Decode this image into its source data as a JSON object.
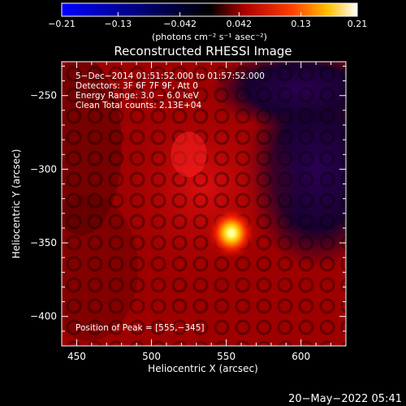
{
  "colorbar": {
    "ticks": [
      {
        "value": -0.21,
        "label": "−0.21"
      },
      {
        "value": -0.13,
        "label": "−0.13"
      },
      {
        "value": -0.042,
        "label": "−0.042"
      },
      {
        "value": 0.042,
        "label": "0.042"
      },
      {
        "value": 0.13,
        "label": "0.13"
      },
      {
        "value": 0.21,
        "label": "0.21"
      }
    ],
    "range": [
      -0.21,
      0.21
    ],
    "units_label": "(photons cm⁻² s⁻¹ asec⁻²)",
    "colors": [
      "#0000ff",
      "#000000",
      "#c00000",
      "#ff7000",
      "#ffff00",
      "#ffffff"
    ]
  },
  "chart_data": {
    "type": "heatmap",
    "title": "Reconstructed RHESSI Image",
    "xlabel": "Heliocentric X (arcsec)",
    "ylabel": "Heliocentric Y (arcsec)",
    "xlim": [
      440,
      630
    ],
    "ylim": [
      -420,
      -227
    ],
    "x_ticks": [
      450,
      500,
      550,
      600
    ],
    "y_ticks": [
      -250,
      -300,
      -350,
      -400
    ],
    "x_tick_labels": [
      "450",
      "500",
      "550",
      "600"
    ],
    "y_tick_labels": [
      "−250",
      "−300",
      "−350",
      "−400"
    ],
    "annotations": [
      "5−Dec−2014 01:51:52.000 to 01:57:52.000",
      "Detectors: 3F 6F 7F 9F, Att 0",
      "Energy Range: 3.0 − 6.0 keV",
      "Clean     Total counts: 2.13E+04"
    ],
    "peak_label": "Position of Peak = [555,−345]",
    "peak": {
      "x": 555,
      "y": -345,
      "value": 0.21
    },
    "secondary_source": {
      "x": 525,
      "y": -290
    },
    "grid": false
  },
  "footer": {
    "timestamp": "20−May−2022 05:41"
  }
}
